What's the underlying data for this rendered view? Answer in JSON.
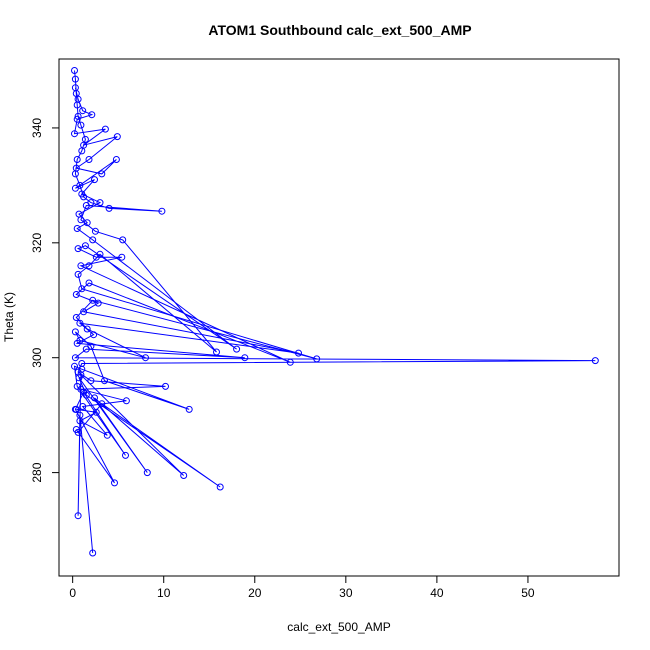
{
  "chart_data": {
    "type": "line",
    "title": "ATOM1 Southbound calc_ext_500_AMP",
    "xlabel": "calc_ext_500_AMP",
    "ylabel": "Theta (K)",
    "xlim": [
      -1.5,
      60
    ],
    "ylim": [
      262,
      352
    ],
    "xticks": [
      0,
      10,
      20,
      30,
      40,
      50
    ],
    "yticks": [
      280,
      300,
      320,
      340
    ],
    "grid": false,
    "series_color": "#0000ff",
    "series": [
      {
        "points": [
          [
            0.2,
            350.0
          ],
          [
            0.3,
            348.5
          ],
          [
            0.4,
            346.0
          ],
          [
            0.5,
            344.0
          ],
          [
            0.6,
            342.0
          ],
          [
            0.9,
            340.5
          ],
          [
            1.4,
            338.0
          ],
          [
            1.0,
            336.0
          ],
          [
            0.5,
            334.5
          ],
          [
            0.3,
            332.0
          ],
          [
            0.8,
            330.0
          ],
          [
            1.2,
            328.0
          ],
          [
            2.0,
            327.0
          ],
          [
            4.0,
            326.0
          ],
          [
            9.8,
            325.5
          ],
          [
            1.5,
            326.5
          ],
          [
            0.9,
            324.0
          ],
          [
            2.5,
            322.0
          ],
          [
            5.5,
            320.5
          ],
          [
            15.8,
            301.0
          ],
          [
            3.0,
            318.0
          ],
          [
            1.8,
            316.0
          ],
          [
            0.6,
            314.5
          ],
          [
            1.0,
            312.0
          ],
          [
            26.8,
            299.8
          ],
          [
            2.2,
            310.0
          ],
          [
            0.4,
            307.0
          ],
          [
            1.6,
            305.0
          ],
          [
            8.0,
            300.0
          ],
          [
            0.8,
            303.0
          ],
          [
            0.3,
            304.5
          ],
          [
            2.0,
            302.0
          ],
          [
            3.5,
            296.0
          ],
          [
            12.8,
            291.0
          ],
          [
            1.0,
            298.0
          ],
          [
            0.2,
            298.5
          ],
          [
            0.5,
            295.0
          ],
          [
            5.8,
            283.0
          ],
          [
            1.2,
            294.0
          ],
          [
            0.3,
            291.0
          ],
          [
            4.6,
            278.2
          ],
          [
            0.4,
            287.5
          ],
          [
            0.6,
            287.0
          ],
          [
            3.2,
            292.0
          ],
          [
            16.2,
            277.5
          ],
          [
            1.5,
            293.5
          ],
          [
            0.7,
            296.5
          ],
          [
            8.2,
            280.0
          ],
          [
            2.4,
            293.0
          ],
          [
            12.2,
            279.5
          ],
          [
            0.9,
            297.0
          ],
          [
            0.6,
            272.5
          ],
          [
            0.8,
            290.0
          ],
          [
            2.2,
            266.0
          ]
        ]
      },
      {
        "points": [
          [
            0.3,
            347.0
          ],
          [
            0.6,
            345.0
          ],
          [
            1.1,
            343.0
          ],
          [
            2.1,
            342.3
          ],
          [
            0.5,
            341.5
          ],
          [
            0.2,
            339.0
          ],
          [
            3.6,
            339.8
          ],
          [
            1.2,
            337.0
          ],
          [
            4.9,
            338.5
          ],
          [
            1.8,
            334.5
          ],
          [
            0.4,
            333.0
          ],
          [
            3.2,
            332.0
          ],
          [
            4.8,
            334.5
          ],
          [
            0.3,
            329.5
          ],
          [
            2.4,
            331.0
          ],
          [
            1.0,
            328.5
          ],
          [
            3.0,
            327.0
          ],
          [
            0.7,
            325.0
          ],
          [
            1.6,
            323.5
          ],
          [
            0.5,
            322.5
          ],
          [
            2.2,
            320.5
          ],
          [
            18.0,
            301.5
          ],
          [
            1.4,
            319.5
          ],
          [
            0.6,
            319.0
          ],
          [
            2.6,
            317.5
          ],
          [
            5.4,
            317.5
          ],
          [
            0.9,
            316.0
          ],
          [
            23.9,
            299.2
          ],
          [
            1.8,
            313.0
          ],
          [
            0.4,
            311.0
          ],
          [
            2.8,
            309.5
          ],
          [
            1.2,
            308.0
          ],
          [
            24.8,
            300.8
          ],
          [
            0.8,
            306.0
          ],
          [
            2.3,
            304.0
          ],
          [
            0.5,
            302.5
          ],
          [
            18.9,
            300.0
          ],
          [
            1.5,
            301.5
          ],
          [
            0.3,
            300.0
          ],
          [
            57.4,
            299.5
          ],
          [
            1.0,
            299.0
          ],
          [
            0.6,
            297.5
          ],
          [
            2.0,
            296.0
          ],
          [
            10.2,
            295.0
          ],
          [
            0.9,
            294.5
          ],
          [
            5.9,
            292.5
          ],
          [
            1.1,
            291.5
          ],
          [
            3.8,
            286.5
          ],
          [
            0.8,
            289.0
          ],
          [
            2.6,
            290.5
          ],
          [
            0.4,
            291.0
          ]
        ]
      }
    ]
  }
}
